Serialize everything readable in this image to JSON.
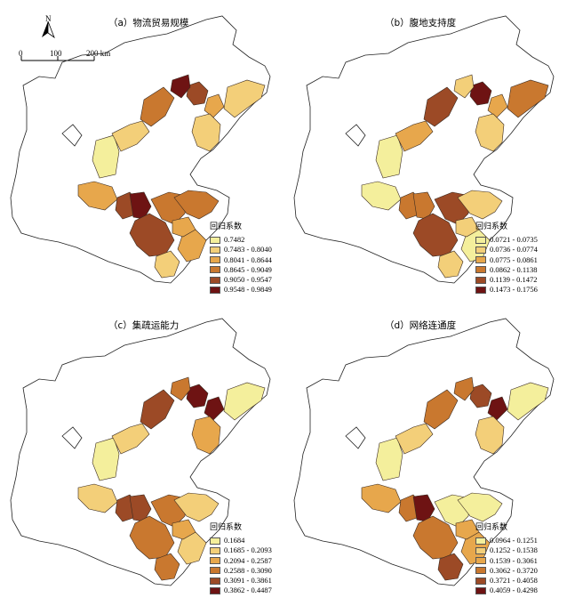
{
  "compass": {
    "north": "N"
  },
  "scale": {
    "labels": [
      "0",
      "100",
      "200 km"
    ]
  },
  "legend_title": "回归系数",
  "panels": [
    {
      "title": "（a）物流贸易规模",
      "classes": [
        {
          "label": "0.7482",
          "color": "#f4ef9c"
        },
        {
          "label": "0.7483 - 0.8040",
          "color": "#f3cf79"
        },
        {
          "label": "0.8041 - 0.8644",
          "color": "#e7a74c"
        },
        {
          "label": "0.8645 - 0.9049",
          "color": "#c9782f"
        },
        {
          "label": "0.9050 - 0.9547",
          "color": "#9c4a26"
        },
        {
          "label": "0.9548 - 0.9849",
          "color": "#6e1313"
        }
      ],
      "region_classes": [
        3,
        4,
        5,
        2,
        1,
        1,
        0,
        1,
        2,
        4,
        5,
        4,
        3,
        3,
        2,
        1,
        2
      ]
    },
    {
      "title": "（b）腹地支持度",
      "classes": [
        {
          "label": "0.0721 - 0.0735",
          "color": "#f4ef9c"
        },
        {
          "label": "0.0736 - 0.0774",
          "color": "#f3cf79"
        },
        {
          "label": "0.0775 - 0.0861",
          "color": "#e7a74c"
        },
        {
          "label": "0.0862 - 0.1138",
          "color": "#c9782f"
        },
        {
          "label": "0.1139 - 0.1472",
          "color": "#9c4a26"
        },
        {
          "label": "0.1473 - 0.1756",
          "color": "#6e1313"
        }
      ],
      "region_classes": [
        4,
        5,
        1,
        2,
        3,
        1,
        0,
        2,
        0,
        3,
        3,
        4,
        4,
        1,
        0,
        1,
        1
      ]
    },
    {
      "title": "（c）集疏运能力",
      "classes": [
        {
          "label": "0.1684",
          "color": "#f4ef9c"
        },
        {
          "label": "0.1685 - 0.2093",
          "color": "#f3cf79"
        },
        {
          "label": "0.2094 - 0.2587",
          "color": "#e7a74c"
        },
        {
          "label": "0.2588 - 0.3090",
          "color": "#c9782f"
        },
        {
          "label": "0.3091 - 0.3861",
          "color": "#9c4a26"
        },
        {
          "label": "0.3862 - 0.4487",
          "color": "#6e1313"
        }
      ],
      "region_classes": [
        4,
        5,
        3,
        5,
        0,
        2,
        0,
        1,
        1,
        4,
        4,
        3,
        3,
        1,
        1,
        3,
        2
      ]
    },
    {
      "title": "（d）网络连通度",
      "classes": [
        {
          "label": "0.0964 - 0.1251",
          "color": "#f4ef9c"
        },
        {
          "label": "0.1252 - 0.1538",
          "color": "#f3cf79"
        },
        {
          "label": "0.1539 - 0.3061",
          "color": "#e7a74c"
        },
        {
          "label": "0.3062 - 0.3720",
          "color": "#c9782f"
        },
        {
          "label": "0.3721 - 0.4058",
          "color": "#9c4a26"
        },
        {
          "label": "0.4059 - 0.4298",
          "color": "#6e1313"
        }
      ],
      "region_classes": [
        3,
        4,
        3,
        5,
        0,
        1,
        0,
        1,
        2,
        3,
        5,
        3,
        0,
        0,
        2,
        4,
        2
      ]
    }
  ]
}
